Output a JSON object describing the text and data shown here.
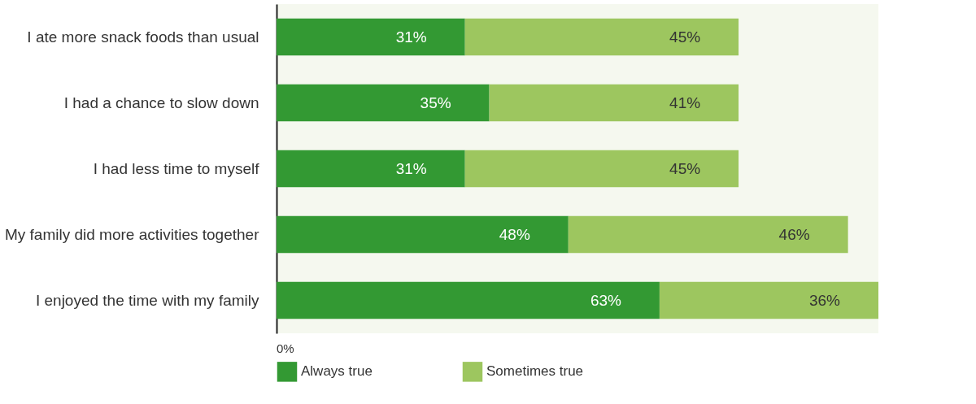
{
  "chart_data": {
    "type": "bar",
    "orientation": "horizontal",
    "stacked": true,
    "categories": [
      "I ate more snack foods than usual",
      "I had a chance to slow down",
      "I had less time to myself",
      "My family did more activities together",
      "I enjoyed the time with my family"
    ],
    "series": [
      {
        "name": "Always true",
        "color": "#339933",
        "values": [
          31,
          35,
          31,
          48,
          63
        ],
        "value_labels": [
          "31%",
          "35%",
          "31%",
          "48%",
          "63%"
        ]
      },
      {
        "name": "Sometimes true",
        "color": "#9dc65f",
        "values": [
          45,
          41,
          45,
          46,
          36
        ],
        "value_labels": [
          "45%",
          "41%",
          "45%",
          "46%",
          "36%"
        ]
      }
    ],
    "annotations": [
      "0%"
    ],
    "grid": false,
    "legend": "bottom"
  }
}
